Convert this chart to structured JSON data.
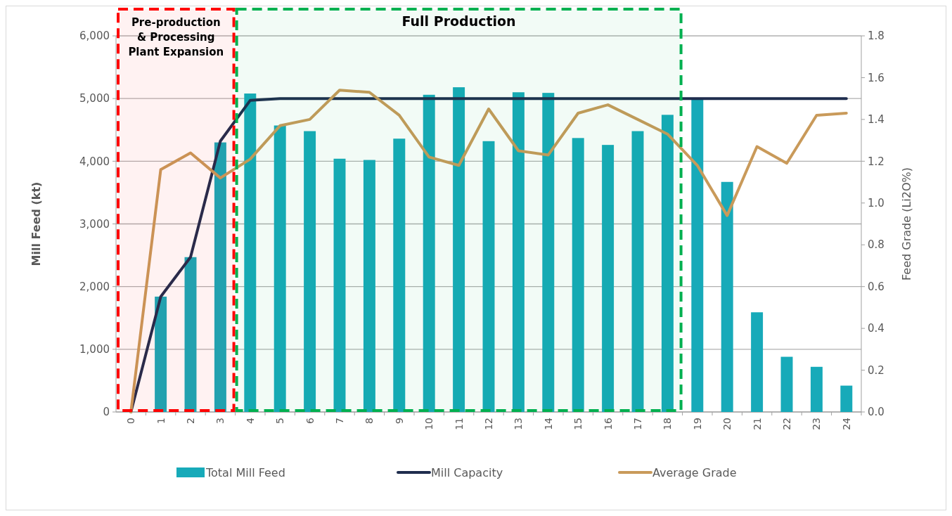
{
  "chart_data": {
    "type": "bar",
    "ylabel": "Mill Feed (kt)",
    "y2label": "Feed Grade (Li2O%)",
    "categories": [
      "0",
      "1",
      "2",
      "3",
      "4",
      "5",
      "6",
      "7",
      "8",
      "9",
      "10",
      "11",
      "12",
      "13",
      "14",
      "15",
      "16",
      "17",
      "18",
      "19",
      "20",
      "21",
      "22",
      "23",
      "24"
    ],
    "series": [
      {
        "name": "Total Mill Feed",
        "color": "#17aab9",
        "values": [
          0,
          1840,
          2470,
          4300,
          5080,
          4570,
          4480,
          4040,
          4020,
          4360,
          5060,
          5180,
          4320,
          5100,
          5090,
          4370,
          4260,
          4480,
          4740,
          5000,
          3670,
          1590,
          880,
          720,
          420
        ]
      },
      {
        "name": "Mill Capacity",
        "type": "line",
        "color": "#1f2d4e",
        "values": [
          0,
          1840,
          2470,
          4320,
          4970,
          5000,
          5000,
          5000,
          5000,
          5000,
          5000,
          5000,
          5000,
          5000,
          5000,
          5000,
          5000,
          5000,
          5000,
          5000,
          5000,
          5000,
          5000,
          5000,
          5000
        ]
      },
      {
        "name": "Average Grade",
        "type": "line",
        "axis": "y2",
        "color": "#c99a5a",
        "values": [
          0,
          1.16,
          1.24,
          1.12,
          1.21,
          1.37,
          1.4,
          1.54,
          1.53,
          1.42,
          1.22,
          1.18,
          1.45,
          1.25,
          1.23,
          1.43,
          1.47,
          1.4,
          1.33,
          1.18,
          0.94,
          1.27,
          1.19,
          1.42,
          1.43
        ]
      }
    ],
    "ylim": [
      0,
      6000
    ],
    "yticks": [
      0,
      {
        "value": 1000,
        "label": "1,000"
      },
      {
        "value": 2000,
        "label": "2,000"
      },
      {
        "value": 3000,
        "label": "3,000"
      },
      {
        "value": 4000,
        "label": "4,000"
      },
      {
        "value": 5000,
        "label": "5,000"
      },
      {
        "value": 6000,
        "label": "6,000"
      }
    ],
    "y2lim": [
      0,
      1.8
    ],
    "y2ticks": [
      {
        "value": 0,
        "label": "0.0"
      },
      0.2,
      0.4,
      0.6,
      0.8,
      {
        "value": 1,
        "label": "1.0"
      },
      1.2,
      1.4,
      1.6,
      1.8
    ],
    "bands": [
      {
        "axis": "x",
        "from": "0",
        "to": "3",
        "label": "Pre-production\n& Processing\nPlant Expansion",
        "color": "#ff0000"
      },
      {
        "axis": "x",
        "from": "4",
        "to": "18",
        "label": "Full Production",
        "color": "#00b050"
      }
    ],
    "grid": "y",
    "legend": "bottom",
    "line_style": "solid",
    "marker": "none"
  }
}
